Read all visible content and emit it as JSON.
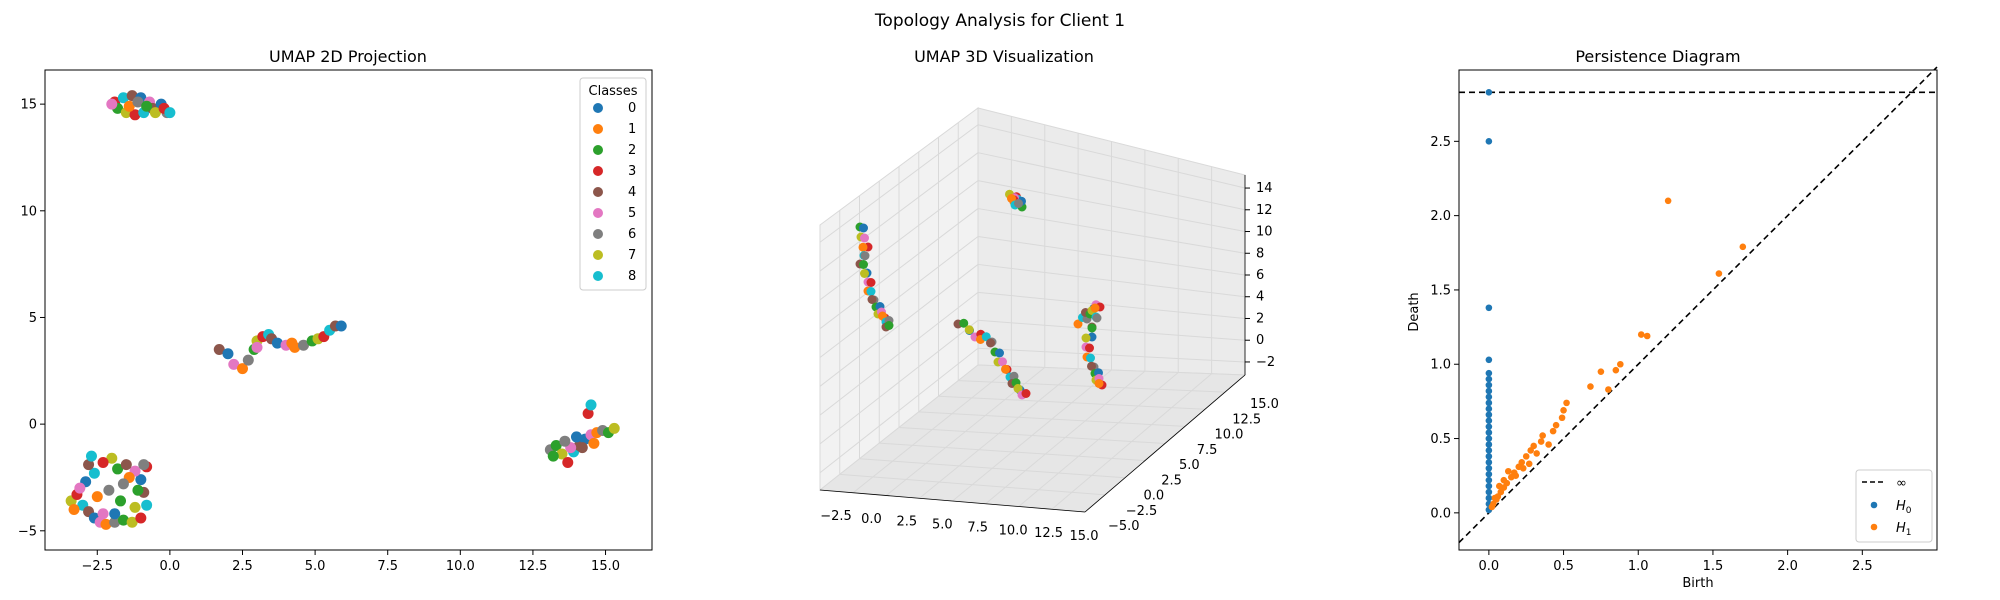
{
  "figure": {
    "suptitle": "Topology Analysis for Client 1"
  },
  "colors": {
    "class_palette": [
      "#1f77b4",
      "#ff7f0e",
      "#2ca02c",
      "#d62728",
      "#8c564b",
      "#e377c2",
      "#7f7f7f",
      "#bcbd22",
      "#17becf"
    ],
    "h0": "#1f77b4",
    "h1": "#ff7f0e",
    "pane": "#f2f2f2",
    "grid": "#d9d9d9"
  },
  "chart_data": [
    {
      "type": "scatter",
      "title": "UMAP 2D Projection",
      "xlabel": "",
      "ylabel": "",
      "xlim": [
        -4.3,
        16.6
      ],
      "ylim": [
        -5.9,
        16.6
      ],
      "xticks": [
        -2.5,
        0.0,
        2.5,
        5.0,
        7.5,
        10.0,
        12.5,
        15.0
      ],
      "yticks": [
        -5,
        0,
        5,
        10,
        15
      ],
      "xtick_labels": [
        "−2.5",
        "0.0",
        "2.5",
        "5.0",
        "7.5",
        "10.0",
        "12.5",
        "15.0"
      ],
      "ytick_labels": [
        "−5",
        "0",
        "5",
        "10",
        "15"
      ],
      "legend": {
        "title": "Classes",
        "placement": "top-right",
        "labels": [
          "0",
          "1",
          "2",
          "3",
          "4",
          "5",
          "6",
          "7",
          "8"
        ]
      },
      "clusters": [
        {
          "name": "top",
          "points": [
            [
              -1.9,
              15.1
            ],
            [
              -1.6,
              15.3
            ],
            [
              -1.3,
              15.4
            ],
            [
              -1.0,
              15.3
            ],
            [
              -0.7,
              15.1
            ],
            [
              -0.4,
              14.8
            ],
            [
              -0.1,
              14.6
            ],
            [
              -1.8,
              14.8
            ],
            [
              -1.5,
              14.6
            ],
            [
              -1.2,
              14.5
            ],
            [
              -0.9,
              14.6
            ],
            [
              -0.6,
              14.8
            ],
            [
              -0.3,
              15.0
            ],
            [
              -2.0,
              15.0
            ],
            [
              -1.4,
              14.9
            ],
            [
              -1.1,
              15.1
            ],
            [
              -0.8,
              14.9
            ],
            [
              -0.5,
              14.6
            ],
            [
              -0.2,
              14.8
            ],
            [
              0.0,
              14.6
            ]
          ]
        },
        {
          "name": "middle",
          "points": [
            [
              1.7,
              3.5
            ],
            [
              2.0,
              3.3
            ],
            [
              2.2,
              2.8
            ],
            [
              2.5,
              2.6
            ],
            [
              2.7,
              3.0
            ],
            [
              2.9,
              3.5
            ],
            [
              3.0,
              3.9
            ],
            [
              3.2,
              4.1
            ],
            [
              3.4,
              4.2
            ],
            [
              3.5,
              4.0
            ],
            [
              3.7,
              3.8
            ],
            [
              4.0,
              3.7
            ],
            [
              4.3,
              3.6
            ],
            [
              4.6,
              3.7
            ],
            [
              4.9,
              3.9
            ],
            [
              5.1,
              4.0
            ],
            [
              5.3,
              4.1
            ],
            [
              5.5,
              4.4
            ],
            [
              5.7,
              4.6
            ],
            [
              5.9,
              4.6
            ],
            [
              3.0,
              3.6
            ],
            [
              4.2,
              3.8
            ]
          ]
        },
        {
          "name": "right",
          "points": [
            [
              13.1,
              -1.2
            ],
            [
              13.3,
              -1.0
            ],
            [
              13.5,
              -1.4
            ],
            [
              13.7,
              -1.8
            ],
            [
              13.9,
              -1.3
            ],
            [
              14.1,
              -1.0
            ],
            [
              14.3,
              -0.7
            ],
            [
              14.5,
              -0.5
            ],
            [
              14.7,
              -0.4
            ],
            [
              14.9,
              -0.3
            ],
            [
              15.1,
              -0.4
            ],
            [
              15.3,
              -0.2
            ],
            [
              14.4,
              0.5
            ],
            [
              14.5,
              0.9
            ],
            [
              14.2,
              -1.1
            ],
            [
              14.0,
              -0.6
            ],
            [
              13.8,
              -1.1
            ],
            [
              14.6,
              -0.9
            ],
            [
              13.6,
              -0.8
            ],
            [
              13.2,
              -1.5
            ]
          ]
        },
        {
          "name": "bottom-left",
          "points": [
            [
              -3.4,
              -3.6
            ],
            [
              -3.2,
              -3.3
            ],
            [
              -3.0,
              -3.8
            ],
            [
              -2.8,
              -4.1
            ],
            [
              -2.6,
              -4.4
            ],
            [
              -2.4,
              -4.6
            ],
            [
              -2.2,
              -4.7
            ],
            [
              -1.9,
              -4.6
            ],
            [
              -1.6,
              -4.5
            ],
            [
              -1.3,
              -4.6
            ],
            [
              -1.0,
              -4.4
            ],
            [
              -0.8,
              -3.8
            ],
            [
              -0.9,
              -3.2
            ],
            [
              -1.0,
              -2.6
            ],
            [
              -1.2,
              -2.2
            ],
            [
              -1.4,
              -2.5
            ],
            [
              -1.6,
              -2.8
            ],
            [
              -1.8,
              -2.1
            ],
            [
              -2.0,
              -1.6
            ],
            [
              -2.3,
              -1.8
            ],
            [
              -2.6,
              -2.3
            ],
            [
              -2.8,
              -1.9
            ],
            [
              -2.9,
              -2.7
            ],
            [
              -3.1,
              -3.0
            ],
            [
              -2.5,
              -3.4
            ],
            [
              -2.1,
              -3.1
            ],
            [
              -1.7,
              -3.6
            ],
            [
              -1.2,
              -3.9
            ],
            [
              -0.8,
              -2.0
            ],
            [
              -2.7,
              -1.5
            ],
            [
              -1.5,
              -1.9
            ],
            [
              -1.9,
              -4.2
            ],
            [
              -2.3,
              -4.2
            ],
            [
              -3.3,
              -4.0
            ],
            [
              -0.9,
              -1.9
            ],
            [
              -1.1,
              -3.1
            ]
          ]
        }
      ]
    },
    {
      "type": "scatter",
      "title": "UMAP 3D Visualization",
      "xlabel": "",
      "ylabel": "",
      "zlabel": "",
      "xtick_labels": [
        "−2.5",
        "0.0",
        "2.5",
        "5.0",
        "7.5",
        "10.0",
        "12.5",
        "15.0"
      ],
      "ytick_labels": [
        "−5.0",
        "−2.5",
        "0.0",
        "2.5",
        "5.0",
        "7.5",
        "10.0",
        "12.5",
        "15.0"
      ],
      "ztick_labels": [
        "−2",
        "0",
        "2",
        "4",
        "6",
        "8",
        "10",
        "12",
        "14"
      ],
      "grid": true
    },
    {
      "type": "scatter",
      "title": "Persistence Diagram",
      "xlabel": "Birth",
      "ylabel": "Death",
      "xlim": [
        -0.2,
        3.0
      ],
      "ylim": [
        -0.25,
        2.98
      ],
      "xticks": [
        0.0,
        0.5,
        1.0,
        1.5,
        2.0,
        2.5
      ],
      "yticks": [
        0.0,
        0.5,
        1.0,
        1.5,
        2.0,
        2.5
      ],
      "xtick_labels": [
        "0.0",
        "0.5",
        "1.0",
        "1.5",
        "2.0",
        "2.5"
      ],
      "ytick_labels": [
        "0.0",
        "0.5",
        "1.0",
        "1.5",
        "2.0",
        "2.5"
      ],
      "infinity_line": 2.83,
      "legend": {
        "placement": "bottom-right",
        "labels": [
          "∞",
          "H",
          "H"
        ],
        "subscripts": [
          "",
          "0",
          "1"
        ]
      },
      "series": [
        {
          "name": "H0",
          "points": [
            [
              0,
              2.83
            ],
            [
              0,
              2.5
            ],
            [
              0,
              1.38
            ],
            [
              0,
              1.03
            ],
            [
              0,
              0.94
            ],
            [
              0,
              0.9
            ],
            [
              0,
              0.86
            ],
            [
              0,
              0.82
            ],
            [
              0,
              0.78
            ],
            [
              0,
              0.74
            ],
            [
              0,
              0.7
            ],
            [
              0,
              0.66
            ],
            [
              0,
              0.62
            ],
            [
              0,
              0.58
            ],
            [
              0,
              0.54
            ],
            [
              0,
              0.5
            ],
            [
              0,
              0.46
            ],
            [
              0,
              0.42
            ],
            [
              0,
              0.38
            ],
            [
              0,
              0.34
            ],
            [
              0,
              0.3
            ],
            [
              0,
              0.26
            ],
            [
              0,
              0.22
            ],
            [
              0,
              0.18
            ],
            [
              0,
              0.14
            ],
            [
              0,
              0.1
            ],
            [
              0,
              0.06
            ],
            [
              0,
              0.02
            ]
          ]
        },
        {
          "name": "H1",
          "points": [
            [
              1.2,
              2.1
            ],
            [
              1.7,
              1.79
            ],
            [
              1.54,
              1.61
            ],
            [
              1.06,
              1.19
            ],
            [
              1.02,
              1.2
            ],
            [
              0.88,
              1.0
            ],
            [
              0.85,
              0.96
            ],
            [
              0.75,
              0.95
            ],
            [
              0.68,
              0.85
            ],
            [
              0.8,
              0.83
            ],
            [
              0.52,
              0.74
            ],
            [
              0.5,
              0.69
            ],
            [
              0.49,
              0.64
            ],
            [
              0.45,
              0.59
            ],
            [
              0.43,
              0.55
            ],
            [
              0.36,
              0.52
            ],
            [
              0.35,
              0.48
            ],
            [
              0.3,
              0.45
            ],
            [
              0.28,
              0.42
            ],
            [
              0.25,
              0.38
            ],
            [
              0.22,
              0.34
            ],
            [
              0.2,
              0.31
            ],
            [
              0.17,
              0.27
            ],
            [
              0.15,
              0.24
            ],
            [
              0.12,
              0.2
            ],
            [
              0.1,
              0.17
            ],
            [
              0.08,
              0.14
            ],
            [
              0.06,
              0.11
            ],
            [
              0.05,
              0.09
            ],
            [
              0.03,
              0.06
            ],
            [
              0.02,
              0.04
            ],
            [
              0.1,
              0.22
            ],
            [
              0.13,
              0.28
            ],
            [
              0.18,
              0.25
            ],
            [
              0.23,
              0.3
            ],
            [
              0.27,
              0.33
            ],
            [
              0.32,
              0.4
            ],
            [
              0.4,
              0.46
            ],
            [
              0.07,
              0.18
            ],
            [
              0.04,
              0.1
            ]
          ]
        }
      ]
    }
  ]
}
